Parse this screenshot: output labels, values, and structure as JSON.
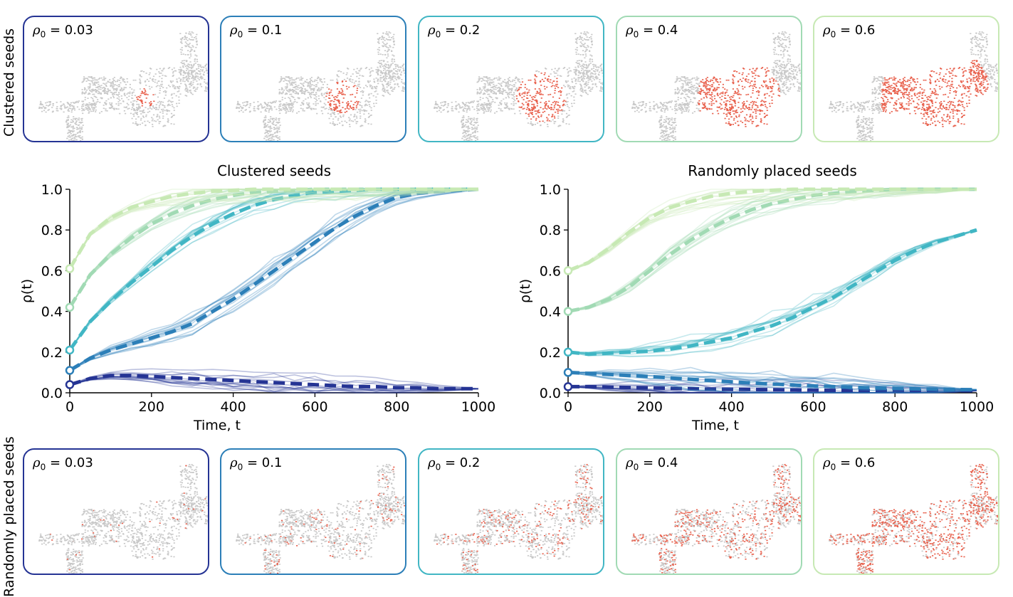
{
  "row_labels": {
    "top": "Clustered seeds",
    "bottom": "Randomly placed seeds"
  },
  "panel_prefix": "ρ",
  "panel_sub": "0",
  "panels": [
    {
      "value": "0.03",
      "color": "#253494",
      "frac": 0.03
    },
    {
      "value": "0.1",
      "color": "#2c7fb8",
      "frac": 0.1
    },
    {
      "value": "0.2",
      "color": "#41b6c4",
      "frac": 0.2
    },
    {
      "value": "0.4",
      "color": "#a1dab4",
      "frac": 0.4
    },
    {
      "value": "0.6",
      "color": "#c7e9b4",
      "frac": 0.6
    }
  ],
  "colors": {
    "active": "#e8604c",
    "inactive": "#c8c8c8"
  },
  "chart_data": [
    {
      "type": "line",
      "title": "Clustered seeds",
      "xlabel": "Time, t",
      "ylabel": "ρ(t)",
      "xlim": [
        0,
        1000
      ],
      "ylim": [
        0,
        1
      ],
      "xticks": [
        0,
        200,
        400,
        600,
        800,
        1000
      ],
      "yticks": [
        0.0,
        0.2,
        0.4,
        0.6,
        0.8,
        1.0
      ],
      "ytick_labels": [
        "0.0",
        "0.2",
        "0.4",
        "0.6",
        "0.8",
        "1.0"
      ],
      "x": [
        0,
        50,
        100,
        150,
        200,
        250,
        300,
        350,
        400,
        450,
        500,
        550,
        600,
        650,
        700,
        750,
        800,
        850,
        900,
        950,
        1000
      ],
      "series": [
        {
          "color": "#253494",
          "rho0": 0.03,
          "values": [
            0.04,
            0.07,
            0.085,
            0.085,
            0.08,
            0.075,
            0.07,
            0.065,
            0.06,
            0.055,
            0.05,
            0.045,
            0.04,
            0.035,
            0.03,
            0.03,
            0.025,
            0.025,
            0.02,
            0.02,
            0.02
          ]
        },
        {
          "color": "#2c7fb8",
          "rho0": 0.1,
          "values": [
            0.11,
            0.17,
            0.21,
            0.24,
            0.27,
            0.3,
            0.34,
            0.4,
            0.46,
            0.53,
            0.6,
            0.67,
            0.74,
            0.81,
            0.87,
            0.92,
            0.96,
            0.98,
            0.99,
            0.995,
            1.0
          ]
        },
        {
          "color": "#41b6c4",
          "rho0": 0.2,
          "values": [
            0.21,
            0.35,
            0.45,
            0.54,
            0.62,
            0.7,
            0.77,
            0.83,
            0.88,
            0.92,
            0.95,
            0.97,
            0.985,
            0.99,
            0.995,
            1.0,
            1.0,
            1.0,
            1.0,
            1.0,
            1.0
          ]
        },
        {
          "color": "#a1dab4",
          "rho0": 0.4,
          "values": [
            0.42,
            0.58,
            0.68,
            0.76,
            0.83,
            0.88,
            0.92,
            0.95,
            0.97,
            0.985,
            0.99,
            0.995,
            1.0,
            1.0,
            1.0,
            1.0,
            1.0,
            1.0,
            1.0,
            1.0,
            1.0
          ]
        },
        {
          "color": "#c7e9b4",
          "rho0": 0.6,
          "values": [
            0.61,
            0.78,
            0.86,
            0.91,
            0.94,
            0.965,
            0.98,
            0.99,
            0.995,
            1.0,
            1.0,
            1.0,
            1.0,
            1.0,
            1.0,
            1.0,
            1.0,
            1.0,
            1.0,
            1.0,
            1.0
          ]
        }
      ]
    },
    {
      "type": "line",
      "title": "Randomly placed seeds",
      "xlabel": "Time, t",
      "ylabel": "ρ(t)",
      "xlim": [
        0,
        1000
      ],
      "ylim": [
        0,
        1
      ],
      "xticks": [
        0,
        200,
        400,
        600,
        800,
        1000
      ],
      "yticks": [
        0.0,
        0.2,
        0.4,
        0.6,
        0.8,
        1.0
      ],
      "ytick_labels": [
        "0.0",
        "0.2",
        "0.4",
        "0.6",
        "0.8",
        "1.0"
      ],
      "x": [
        0,
        50,
        100,
        150,
        200,
        250,
        300,
        350,
        400,
        450,
        500,
        550,
        600,
        650,
        700,
        750,
        800,
        850,
        900,
        950,
        1000
      ],
      "series": [
        {
          "color": "#253494",
          "rho0": 0.03,
          "values": [
            0.03,
            0.03,
            0.028,
            0.026,
            0.024,
            0.022,
            0.02,
            0.018,
            0.017,
            0.016,
            0.015,
            0.014,
            0.013,
            0.012,
            0.012,
            0.011,
            0.01,
            0.01,
            0.01,
            0.01,
            0.01
          ]
        },
        {
          "color": "#2c7fb8",
          "rho0": 0.1,
          "values": [
            0.1,
            0.095,
            0.09,
            0.085,
            0.08,
            0.073,
            0.066,
            0.06,
            0.054,
            0.048,
            0.043,
            0.038,
            0.034,
            0.03,
            0.027,
            0.024,
            0.022,
            0.02,
            0.018,
            0.016,
            0.015
          ]
        },
        {
          "color": "#41b6c4",
          "rho0": 0.2,
          "values": [
            0.2,
            0.19,
            0.195,
            0.2,
            0.205,
            0.215,
            0.23,
            0.25,
            0.27,
            0.3,
            0.33,
            0.37,
            0.42,
            0.47,
            0.53,
            0.59,
            0.65,
            0.7,
            0.74,
            0.77,
            0.8
          ]
        },
        {
          "color": "#a1dab4",
          "rho0": 0.4,
          "values": [
            0.4,
            0.42,
            0.46,
            0.52,
            0.6,
            0.68,
            0.75,
            0.81,
            0.86,
            0.9,
            0.93,
            0.95,
            0.97,
            0.98,
            0.99,
            0.995,
            1.0,
            1.0,
            1.0,
            1.0,
            1.0
          ]
        },
        {
          "color": "#c7e9b4",
          "rho0": 0.6,
          "values": [
            0.6,
            0.64,
            0.71,
            0.79,
            0.86,
            0.91,
            0.94,
            0.965,
            0.98,
            0.99,
            0.995,
            1.0,
            1.0,
            1.0,
            1.0,
            1.0,
            1.0,
            1.0,
            1.0,
            1.0,
            1.0
          ]
        }
      ]
    }
  ]
}
